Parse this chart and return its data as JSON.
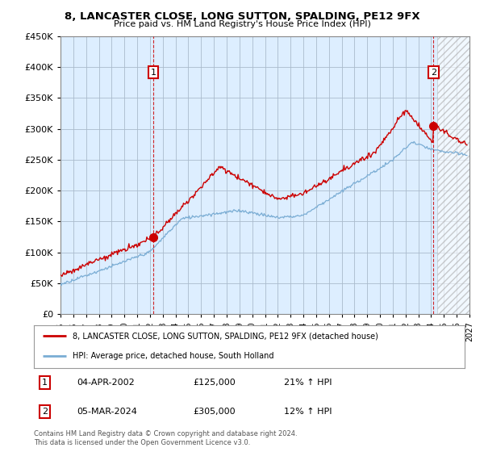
{
  "title": "8, LANCASTER CLOSE, LONG SUTTON, SPALDING, PE12 9FX",
  "subtitle": "Price paid vs. HM Land Registry's House Price Index (HPI)",
  "legend_line1": "8, LANCASTER CLOSE, LONG SUTTON, SPALDING, PE12 9FX (detached house)",
  "legend_line2": "HPI: Average price, detached house, South Holland",
  "footnote": "Contains HM Land Registry data © Crown copyright and database right 2024.\nThis data is licensed under the Open Government Licence v3.0.",
  "table": [
    {
      "num": "1",
      "date": "04-APR-2002",
      "price": "£125,000",
      "hpi": "21% ↑ HPI"
    },
    {
      "num": "2",
      "date": "05-MAR-2024",
      "price": "£305,000",
      "hpi": "12% ↑ HPI"
    }
  ],
  "property_color": "#cc0000",
  "hpi_color": "#7aadd4",
  "marker1_x": 2002.27,
  "marker1_y": 125000,
  "marker2_x": 2024.18,
  "marker2_y": 305000,
  "ylim": [
    0,
    450000
  ],
  "xlim_start": 1995,
  "xlim_end": 2027,
  "yticks": [
    0,
    50000,
    100000,
    150000,
    200000,
    250000,
    300000,
    350000,
    400000,
    450000
  ],
  "xticks": [
    1995,
    1996,
    1997,
    1998,
    1999,
    2000,
    2001,
    2002,
    2003,
    2004,
    2005,
    2006,
    2007,
    2008,
    2009,
    2010,
    2011,
    2012,
    2013,
    2014,
    2015,
    2016,
    2017,
    2018,
    2019,
    2020,
    2021,
    2022,
    2023,
    2024,
    2025,
    2026,
    2027
  ],
  "background_color": "#ffffff",
  "plot_bg_color": "#ddeeff",
  "grid_color": "#aabbcc",
  "hatch_start": 2024.5
}
